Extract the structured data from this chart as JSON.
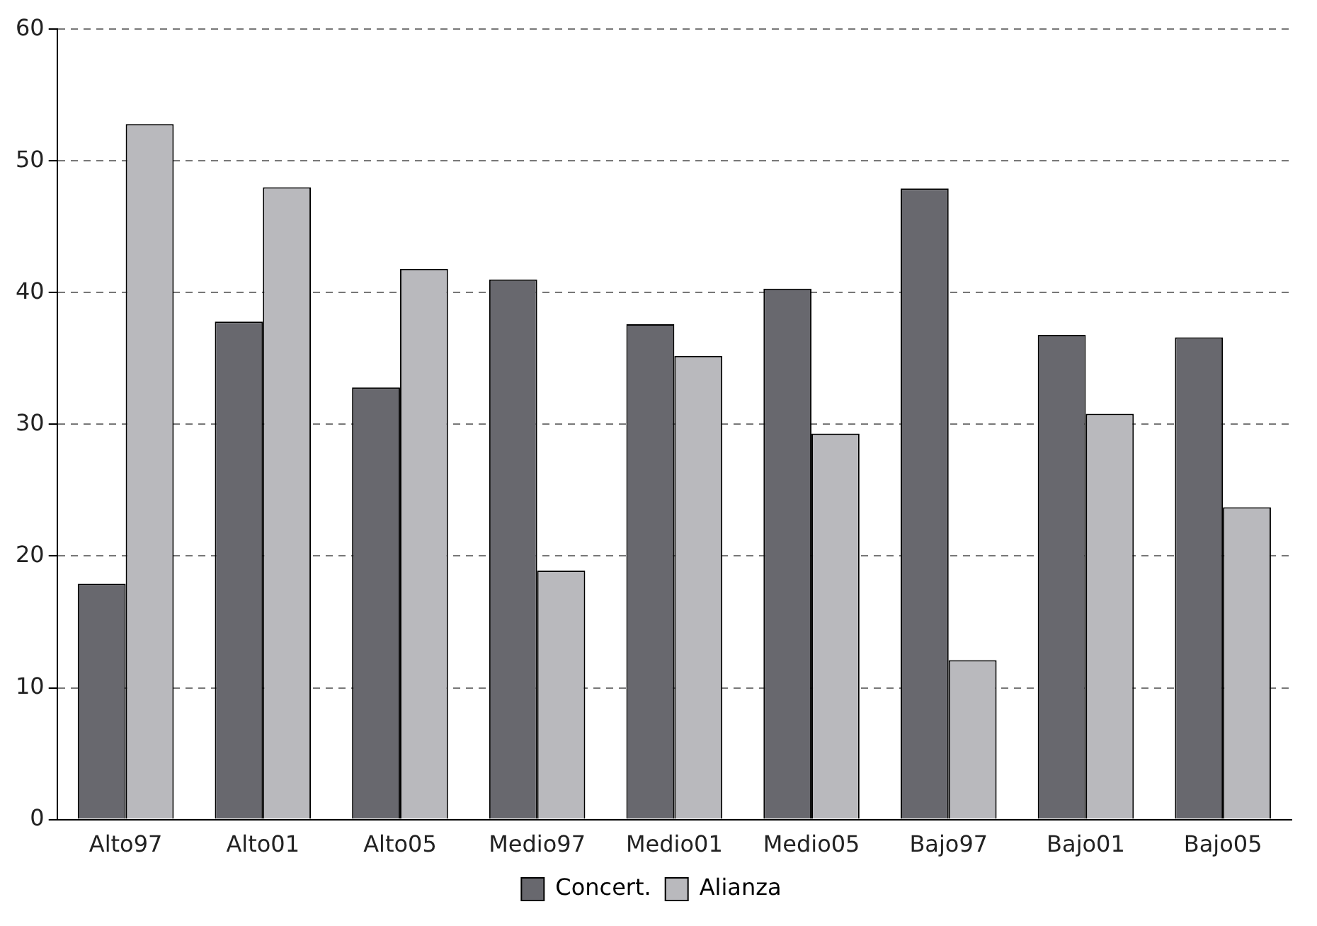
{
  "chart_data": {
    "type": "bar",
    "categories": [
      "Alto97",
      "Alto01",
      "Alto05",
      "Medio97",
      "Medio01",
      "Medio05",
      "Bajo97",
      "Bajo01",
      "Bajo05"
    ],
    "series": [
      {
        "name": "Concert.",
        "color": "#68686e",
        "values": [
          17.9,
          37.8,
          32.8,
          41.0,
          37.6,
          40.3,
          47.9,
          36.8,
          36.6
        ]
      },
      {
        "name": "Alianza",
        "color": "#b9b9bd",
        "values": [
          52.8,
          48.0,
          41.8,
          18.9,
          35.2,
          29.3,
          12.1,
          30.8,
          23.7
        ]
      }
    ],
    "ylim": [
      0,
      60
    ],
    "yticks": [
      0,
      10,
      20,
      30,
      40,
      50,
      60
    ],
    "grid": "y",
    "legend": "bottom"
  }
}
